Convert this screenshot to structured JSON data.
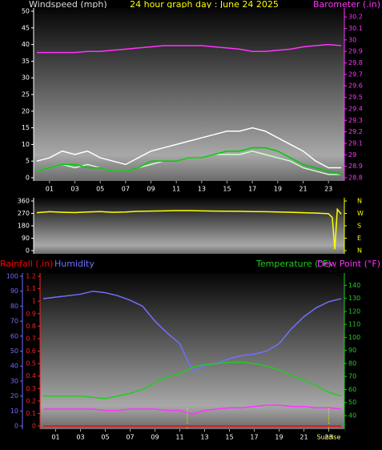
{
  "chart_data": [
    {
      "type": "line",
      "title": "24 hour graph day : June 24 2025",
      "ylabel": "Windspeed (mph)",
      "y2label": "Barometer (.in)",
      "x": [
        0,
        1,
        2,
        3,
        4,
        5,
        6,
        7,
        8,
        9,
        10,
        11,
        12,
        13,
        14,
        15,
        16,
        17,
        18,
        19,
        20,
        21,
        22,
        23,
        24
      ],
      "xlim": [
        0,
        24
      ],
      "xticks": [
        {
          "value": 1,
          "label": "01"
        },
        {
          "value": 3,
          "label": "03"
        },
        {
          "value": 5,
          "label": "05"
        },
        {
          "value": 7,
          "label": "07"
        },
        {
          "value": 9,
          "label": "09"
        },
        11,
        13,
        15,
        17,
        19,
        21,
        23
      ],
      "ylim": [
        0,
        50
      ],
      "yticks": [
        0,
        5,
        10,
        15,
        20,
        25,
        30,
        35,
        40,
        45,
        50
      ],
      "y2lim": [
        28.8,
        30.25
      ],
      "y2ticks": [
        28.8,
        28.9,
        29,
        29.1,
        29.2,
        29.3,
        29.4,
        29.5,
        29.6,
        29.7,
        29.8,
        29.9,
        30,
        30.1,
        30.2
      ],
      "axis_colors": {
        "y": "#ffffff",
        "y2": "#ff33ff"
      },
      "series": [
        {
          "color": "#ffffff",
          "values": [
            5,
            6,
            8,
            7,
            8,
            6,
            5,
            4,
            6,
            8,
            9,
            10,
            11,
            12,
            13,
            14,
            14,
            15,
            14,
            12,
            10,
            8,
            5,
            3,
            3
          ]
        },
        {
          "color": "#ccffcc",
          "values": [
            2,
            3,
            4,
            3,
            4,
            3,
            2,
            2,
            3,
            4,
            5,
            5,
            6,
            6,
            7,
            7,
            7,
            8,
            7,
            6,
            5,
            3,
            2,
            1,
            1
          ]
        },
        {
          "color": "#00cc00",
          "values": [
            2,
            3,
            4,
            4,
            3,
            3,
            2,
            2,
            3,
            5,
            5,
            5,
            6,
            6,
            7,
            8,
            8,
            9,
            9,
            8,
            6,
            4,
            3,
            2,
            1
          ]
        },
        {
          "color": "#ff33ff",
          "axis": "y2",
          "values": [
            29.89,
            29.89,
            29.89,
            29.89,
            29.9,
            29.9,
            29.91,
            29.92,
            29.93,
            29.94,
            29.95,
            29.95,
            29.95,
            29.95,
            29.94,
            29.93,
            29.92,
            29.9,
            29.9,
            29.91,
            29.92,
            29.94,
            29.95,
            29.96,
            29.95
          ]
        }
      ]
    },
    {
      "type": "line",
      "x": [
        0,
        1,
        2,
        3,
        4,
        5,
        6,
        7,
        8,
        9,
        10,
        11,
        12,
        13,
        14,
        15,
        16,
        17,
        18,
        19,
        20,
        21,
        22,
        23,
        23.3,
        23.5,
        23.7,
        24
      ],
      "xlim": [
        0,
        24
      ],
      "ylim": [
        0,
        360
      ],
      "yticks": [
        0,
        90,
        180,
        270,
        360
      ],
      "y2lim": [
        0,
        360
      ],
      "y2ticks": [
        {
          "value": 360,
          "label": "N"
        },
        {
          "value": 270,
          "label": "W"
        },
        {
          "value": 180,
          "label": "S"
        },
        {
          "value": 90,
          "label": "E"
        },
        {
          "value": 0,
          "label": "N"
        }
      ],
      "axis_colors": {
        "y": "#ffffff",
        "y2": "#ffff00"
      },
      "series": [
        {
          "color": "#ffff00",
          "values": [
            275,
            282,
            278,
            276,
            280,
            283,
            278,
            280,
            285,
            287,
            288,
            290,
            290,
            288,
            287,
            286,
            285,
            283,
            282,
            280,
            278,
            275,
            272,
            268,
            240,
            10,
            300,
            265
          ]
        }
      ]
    },
    {
      "type": "line",
      "x": [
        0,
        1,
        2,
        3,
        4,
        5,
        6,
        7,
        8,
        9,
        10,
        11,
        12,
        13,
        14,
        15,
        16,
        17,
        18,
        19,
        20,
        21,
        22,
        23,
        24
      ],
      "xlim": [
        0,
        24
      ],
      "xticks": [
        {
          "value": 1,
          "label": "01"
        },
        {
          "value": 3,
          "label": "03"
        },
        {
          "value": 5,
          "label": "05"
        },
        {
          "value": 7,
          "label": "07"
        },
        {
          "value": 9,
          "label": "09"
        },
        11,
        13,
        15,
        17,
        19,
        21,
        23
      ],
      "ylim": [
        0,
        1.2
      ],
      "yticks": [
        0,
        0.1,
        0.2,
        0.3,
        0.4,
        0.5,
        0.6,
        0.7,
        0.8,
        0.9,
        1,
        1.1,
        1.2
      ],
      "y3lim": [
        0,
        100
      ],
      "y3ticks": [
        0,
        10,
        20,
        30,
        40,
        50,
        60,
        70,
        80,
        90,
        100
      ],
      "y2lim": [
        32,
        147
      ],
      "y2ticks": [
        40,
        50,
        60,
        70,
        80,
        90,
        100,
        110,
        120,
        130,
        140
      ],
      "axis_colors": {
        "y": "#ff2222",
        "y3": "#7070ff",
        "y2": "#22cc22"
      },
      "events": [
        {
          "x": 11.6
        },
        {
          "x": 23,
          "label": "Sunrise"
        }
      ],
      "series": [
        {
          "name": "Rainfall (.in)",
          "color": "#ff0000",
          "values": [
            0,
            0,
            0,
            0,
            0,
            0,
            0,
            0,
            0,
            0,
            0,
            0,
            0,
            0,
            0,
            0,
            0,
            0,
            0,
            0,
            0,
            0,
            0,
            0,
            0
          ]
        },
        {
          "name": "Humidity",
          "color": "#7070ff",
          "axis": "y3",
          "values": [
            85,
            86,
            87,
            88,
            90,
            89,
            87,
            84,
            80,
            70,
            62,
            55,
            37,
            40,
            42,
            45,
            47,
            48,
            50,
            55,
            65,
            73,
            79,
            83,
            85
          ]
        },
        {
          "name": "Temperature (°F)",
          "color": "#22cc22",
          "axis": "y2",
          "values": [
            55,
            55,
            55,
            55,
            54,
            53,
            55,
            57,
            60,
            65,
            70,
            72,
            77,
            79,
            80,
            81,
            81,
            80,
            78,
            75,
            71,
            67,
            63,
            58,
            55
          ]
        },
        {
          "name": "Dew Point (°F)",
          "color": "#ff33ff",
          "axis": "y2",
          "values": [
            45,
            45,
            45,
            45,
            45,
            44,
            44,
            45,
            45,
            45,
            44,
            44,
            41,
            44,
            45,
            46,
            46,
            47,
            48,
            48,
            47,
            47,
            46,
            46,
            45
          ]
        }
      ]
    }
  ]
}
